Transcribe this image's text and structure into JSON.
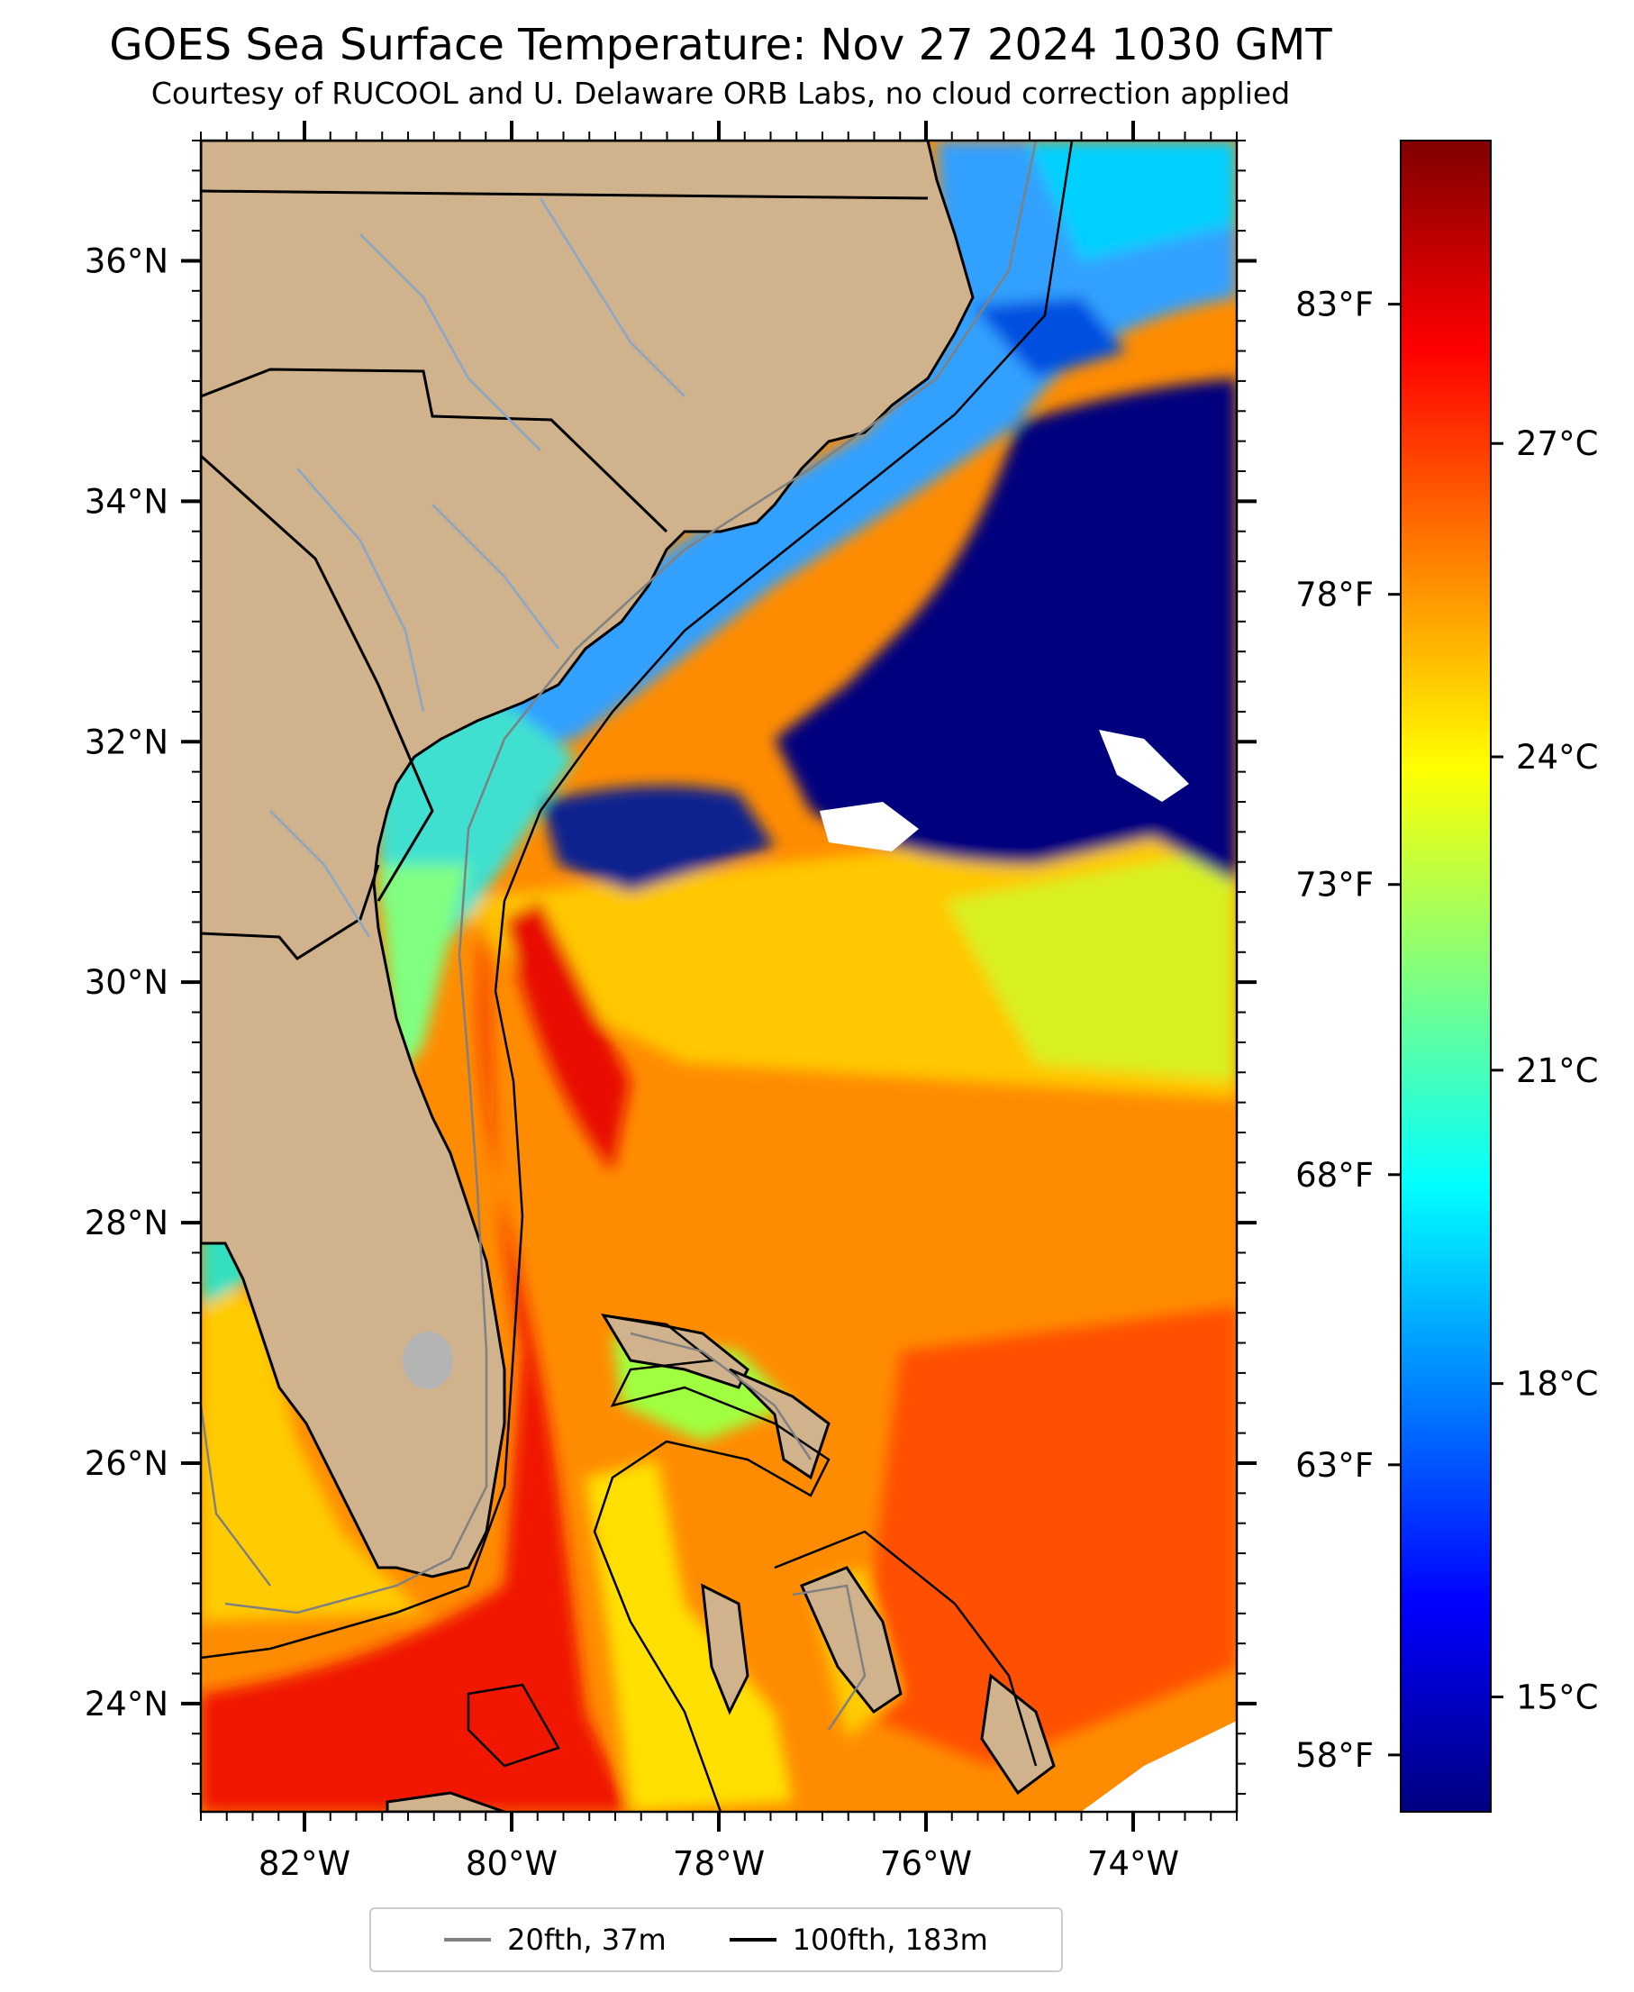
{
  "title": "GOES Sea Surface Temperature: Nov 27 2024 1030 GMT",
  "subtitle": "Courtesy of RUCOOL and U. Delaware ORB Labs, no cloud correction applied",
  "map": {
    "lat_range": [
      23.1,
      37.0
    ],
    "lon_range": [
      -83.0,
      -73.0
    ],
    "lat_ticks": [
      "36°N",
      "34°N",
      "32°N",
      "30°N",
      "28°N",
      "26°N",
      "24°N"
    ],
    "lat_tick_values": [
      36,
      34,
      32,
      30,
      28,
      26,
      24
    ],
    "lon_ticks": [
      "82°W",
      "80°W",
      "78°W",
      "76°W",
      "74°W"
    ],
    "lon_tick_values": [
      -82,
      -80,
      -78,
      -76,
      -74
    ],
    "land_color": "#d0b28c",
    "grid": false
  },
  "colorbar": {
    "celsius_labels": [
      "27°C",
      "24°C",
      "21°C",
      "18°C",
      "15°C"
    ],
    "celsius_values": [
      27,
      24,
      21,
      18,
      15
    ],
    "fahrenheit_labels": [
      "83°F",
      "78°F",
      "73°F",
      "68°F",
      "63°F",
      "58°F"
    ],
    "fahrenheit_values": [
      83,
      78,
      73,
      68,
      63,
      58
    ],
    "range_c": [
      13.9,
      29.9
    ],
    "colormap": "jet",
    "colors": [
      "#800000",
      "#ff0000",
      "#ff8000",
      "#ffff00",
      "#80ff80",
      "#00ffff",
      "#0080ff",
      "#0000ff",
      "#000080"
    ]
  },
  "legend": {
    "entries": [
      {
        "label": "20fth, 37m",
        "color": "#808080"
      },
      {
        "label": "100fth, 183m",
        "color": "#000000"
      }
    ]
  }
}
